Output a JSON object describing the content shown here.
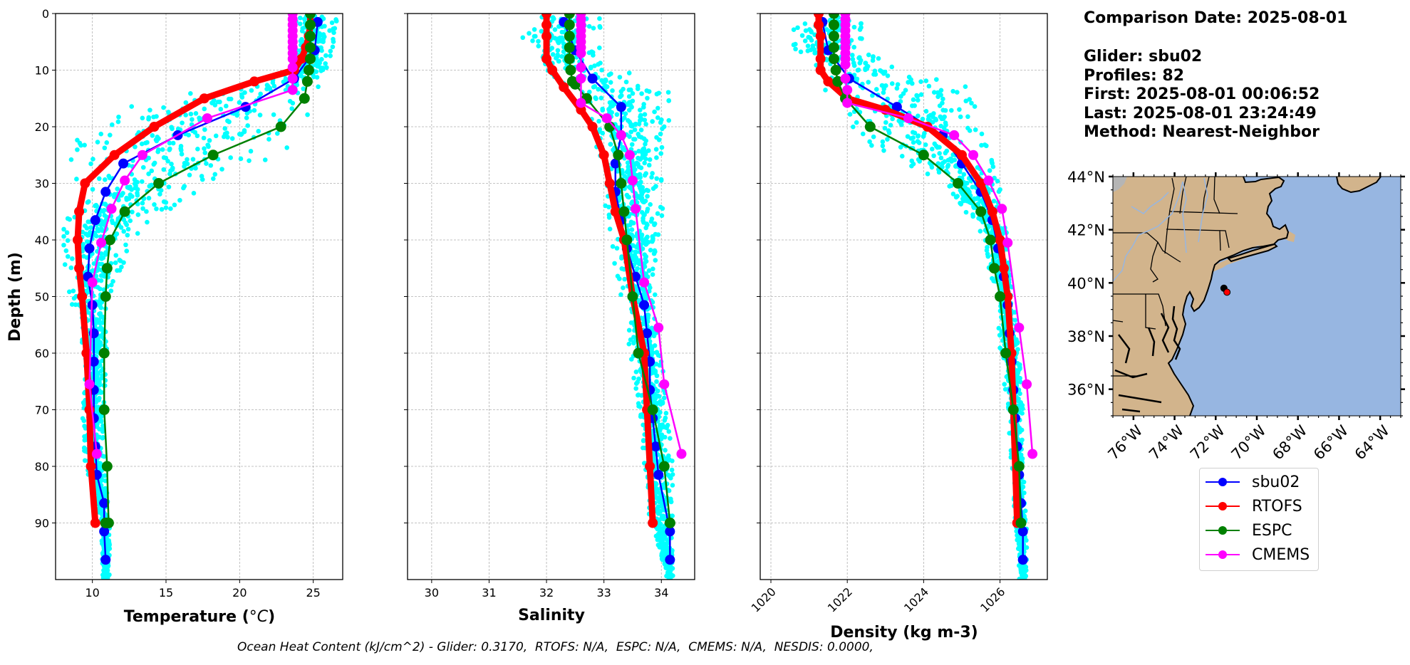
{
  "info": {
    "comparison_date": "Comparison Date: 2025-08-01",
    "glider": "Glider: sbu02",
    "profiles": "Profiles: 82",
    "first": "First: 2025-08-01 00:06:52",
    "last": "Last: 2025-08-01 23:24:49",
    "method": "Method: Nearest-Neighbor"
  },
  "footer": "Ocean Heat Content (kJ/cm^2) - Glider: 0.3170,  RTOFS: N/A,  ESPC: N/A,  CMEMS: N/A,  NESDIS: 0.0000,",
  "colors": {
    "glider_scatter": "#00ffff",
    "sbu02": "#0000ff",
    "RTOFS": "#ff0000",
    "ESPC": "#008000",
    "CMEMS": "#ff00ff",
    "land": "#d2b48c",
    "ocean": "#97b6e1",
    "rivers": "#97b6e1"
  },
  "legend": [
    {
      "label": "sbu02",
      "color": "#0000ff"
    },
    {
      "label": "RTOFS",
      "color": "#ff0000"
    },
    {
      "label": "ESPC",
      "color": "#008000"
    },
    {
      "label": "CMEMS",
      "color": "#ff00ff"
    }
  ],
  "chart_data": [
    {
      "type": "line",
      "title": "",
      "xlabel": "Temperature (°C)",
      "xlabel_main": "Temperature (",
      "xlabel_unit": "°C",
      "xlabel_close": ")",
      "ylabel": "Depth (m)",
      "xlim": [
        7.5,
        27
      ],
      "ylim": [
        100,
        0
      ],
      "xticks": [
        10,
        15,
        20,
        25
      ],
      "yticks": [
        0,
        10,
        20,
        30,
        40,
        50,
        60,
        70,
        80,
        90
      ],
      "grid": true,
      "scatter_envelope": {
        "name": "glider profiles",
        "depths": [
          1,
          5,
          10,
          12,
          15,
          18,
          20,
          22,
          25,
          28,
          30,
          35,
          40,
          45,
          50,
          55,
          60,
          70,
          80,
          90,
          100
        ],
        "min": [
          23.4,
          23.4,
          23.4,
          22.0,
          14.0,
          10.5,
          9.5,
          9.0,
          8.5,
          8.3,
          8.3,
          8.0,
          8.0,
          8.0,
          8.2,
          9.3,
          9.3,
          9.3,
          9.5,
          10.6,
          10.7
        ],
        "max": [
          26.6,
          26.5,
          26.0,
          25.5,
          25.0,
          24.8,
          24.5,
          24.2,
          22.5,
          21.0,
          18.0,
          15.0,
          12.5,
          12.2,
          11.5,
          11.0,
          11.0,
          10.8,
          10.8,
          11.2,
          11.2
        ]
      },
      "series": [
        {
          "name": "sbu02",
          "x": [
            25.3,
            25.1,
            23.7,
            20.4,
            15.8,
            12.1,
            10.9,
            10.2,
            9.8,
            9.7,
            10.0,
            10.1,
            10.1,
            10.1,
            10.1,
            10.2,
            10.3,
            10.8,
            10.8,
            10.9
          ],
          "y": [
            1.5,
            6.5,
            11.5,
            16.5,
            21.5,
            26.5,
            31.5,
            36.5,
            41.5,
            46.5,
            51.5,
            56.5,
            61.5,
            66.5,
            71.5,
            76.5,
            81.5,
            86.5,
            91.5,
            96.5
          ]
        },
        {
          "name": "RTOFS",
          "x": [
            24.8,
            24.8,
            24.7,
            24.5,
            24.2,
            23.7,
            21.0,
            17.6,
            14.2,
            11.5,
            9.5,
            9.1,
            9.0,
            9.1,
            9.3,
            9.6,
            9.8,
            9.9,
            10.2
          ],
          "y": [
            0,
            2,
            4,
            6,
            8,
            10,
            12,
            15,
            20,
            25,
            30,
            35,
            40,
            45,
            50,
            60,
            70,
            80,
            90
          ]
        },
        {
          "name": "ESPC",
          "x": [
            24.8,
            24.8,
            24.8,
            24.8,
            24.8,
            24.7,
            24.6,
            24.4,
            22.8,
            18.2,
            14.5,
            12.2,
            11.2,
            11.0,
            10.9,
            10.8,
            10.8,
            11.0,
            11.1,
            10.9,
            10.9
          ],
          "y": [
            0,
            2,
            4,
            6,
            8,
            10,
            12,
            15,
            20,
            25,
            30,
            35,
            40,
            45,
            50,
            60,
            70,
            80,
            90,
            90,
            90
          ]
        },
        {
          "name": "CMEMS",
          "x": [
            23.6,
            23.6,
            23.6,
            23.6,
            23.6,
            23.6,
            23.6,
            23.6,
            23.6,
            23.6,
            23.6,
            23.6,
            17.8,
            13.4,
            12.2,
            11.3,
            10.6,
            10.0,
            9.8,
            10.3
          ],
          "y": [
            0,
            1,
            2,
            3,
            4,
            5,
            6,
            7,
            8,
            9.5,
            11.5,
            13.5,
            18.5,
            25,
            29.5,
            34.5,
            40.5,
            47.5,
            65.5,
            77.8
          ]
        }
      ]
    },
    {
      "type": "line",
      "xlabel": "Salinity",
      "ylabel": "",
      "xlim": [
        29.58,
        34.58
      ],
      "ylim": [
        100,
        0
      ],
      "xticks": [
        30,
        31,
        32,
        33,
        34
      ],
      "yticks": [
        0,
        10,
        20,
        30,
        40,
        50,
        60,
        70,
        80,
        90
      ],
      "grid": true,
      "scatter_envelope": {
        "name": "glider profiles",
        "depths": [
          1,
          4,
          8,
          10,
          13,
          15,
          18,
          20,
          25,
          30,
          35,
          40,
          45,
          50,
          55,
          60,
          70,
          80,
          90,
          100
        ],
        "min": [
          31.9,
          31.55,
          31.9,
          32.0,
          32.3,
          32.3,
          32.6,
          32.7,
          32.9,
          33.0,
          33.0,
          33.1,
          33.2,
          33.3,
          33.4,
          33.45,
          33.6,
          33.7,
          33.8,
          34.1
        ],
        "max": [
          33.0,
          32.95,
          32.9,
          33.3,
          34.3,
          34.3,
          34.2,
          34.1,
          34.0,
          34.0,
          34.05,
          34.0,
          33.9,
          33.9,
          33.9,
          34.0,
          34.1,
          34.2,
          34.2,
          34.2
        ]
      },
      "series": [
        {
          "name": "sbu02",
          "x": [
            32.3,
            32.5,
            32.8,
            33.3,
            33.3,
            33.2,
            33.2,
            33.3,
            33.4,
            33.55,
            33.7,
            33.75,
            33.8,
            33.8,
            33.85,
            33.9,
            33.95,
            34.15,
            34.15
          ],
          "y": [
            1.5,
            6.5,
            11.5,
            16.5,
            21.5,
            26.5,
            31.5,
            36.5,
            41.5,
            46.5,
            51.5,
            56.5,
            61.5,
            66.5,
            71.5,
            76.5,
            81.5,
            91.5,
            96.5
          ]
        },
        {
          "name": "RTOFS",
          "x": [
            32.0,
            32.0,
            32.0,
            32.0,
            32.1,
            32.3,
            32.6,
            32.8,
            33.0,
            33.1,
            33.2,
            33.35,
            33.5,
            33.7,
            33.75,
            33.8,
            33.85
          ],
          "y": [
            0,
            2,
            4,
            8,
            10,
            13,
            17,
            20,
            25,
            30,
            35,
            40,
            50,
            60,
            70,
            80,
            90
          ]
        },
        {
          "name": "ESPC",
          "x": [
            32.4,
            32.4,
            32.4,
            32.4,
            32.4,
            32.42,
            32.45,
            32.5,
            32.7,
            33.1,
            33.25,
            33.3,
            33.35,
            33.4,
            33.5,
            33.6,
            33.85,
            34.05,
            34.15,
            34.15
          ],
          "y": [
            0,
            2,
            4,
            6,
            8,
            10,
            12,
            12.5,
            15,
            20,
            25,
            30,
            35,
            40,
            50,
            60,
            70,
            80,
            90,
            90
          ]
        },
        {
          "name": "CMEMS",
          "x": [
            32.6,
            32.6,
            32.6,
            32.6,
            32.6,
            32.6,
            32.6,
            32.6,
            32.6,
            32.6,
            32.6,
            33.05,
            33.3,
            33.45,
            33.5,
            33.55,
            33.7,
            33.95,
            34.05,
            34.35
          ],
          "y": [
            0,
            1,
            2,
            3,
            4,
            5,
            6,
            7,
            9.5,
            11.5,
            15.8,
            18.5,
            21.5,
            25,
            29.5,
            34.5,
            47.5,
            55.5,
            65.5,
            77.8
          ]
        }
      ]
    },
    {
      "type": "line",
      "xlabel": "Density (kg m-3)",
      "ylabel": "",
      "xlim": [
        1019.72,
        1027.24
      ],
      "ylim": [
        100,
        0
      ],
      "xticks": [
        1020,
        1022,
        1024,
        1026
      ],
      "yticks": [
        0,
        10,
        20,
        30,
        40,
        50,
        60,
        70,
        80,
        90
      ],
      "grid": true,
      "scatter_envelope": {
        "name": "glider profiles",
        "depths": [
          1,
          4,
          7,
          10,
          13,
          15,
          18,
          20,
          23,
          25,
          28,
          30,
          35,
          40,
          45,
          50,
          60,
          70,
          80,
          90,
          100
        ],
        "min": [
          1021.0,
          1020.2,
          1020.5,
          1021.2,
          1021.3,
          1021.5,
          1021.9,
          1022.0,
          1022.2,
          1022.8,
          1023.7,
          1024.5,
          1025.1,
          1025.6,
          1025.7,
          1025.9,
          1026.0,
          1026.2,
          1026.3,
          1026.4,
          1026.5
        ],
        "max": [
          1022.5,
          1022.5,
          1022.6,
          1023.5,
          1025.5,
          1025.6,
          1025.4,
          1025.6,
          1025.7,
          1025.8,
          1025.9,
          1026.0,
          1026.1,
          1026.2,
          1026.3,
          1026.35,
          1026.5,
          1026.6,
          1026.6,
          1026.7,
          1026.7
        ]
      },
      "series": [
        {
          "name": "sbu02",
          "x": [
            1021.35,
            1021.5,
            1022.05,
            1023.3,
            1024.5,
            1025.0,
            1025.5,
            1025.8,
            1025.95,
            1026.1,
            1026.2,
            1026.25,
            1026.3,
            1026.35,
            1026.4,
            1026.45,
            1026.5,
            1026.55,
            1026.6,
            1026.6
          ],
          "y": [
            1.5,
            6.5,
            11.5,
            16.5,
            21.5,
            26.5,
            31.5,
            36.5,
            41.5,
            46.5,
            51.5,
            56.5,
            61.5,
            66.5,
            71.5,
            76.5,
            81.5,
            86.5,
            91.5,
            96.5
          ]
        },
        {
          "name": "RTOFS",
          "x": [
            1021.25,
            1021.25,
            1021.3,
            1021.3,
            1021.3,
            1021.5,
            1022.0,
            1023.0,
            1024.1,
            1025.0,
            1025.5,
            1025.8,
            1026.0,
            1026.1,
            1026.2,
            1026.3,
            1026.35,
            1026.45
          ],
          "y": [
            0,
            2,
            4,
            8,
            10,
            12,
            15,
            17,
            20,
            25,
            30,
            35,
            40,
            45,
            50,
            60,
            70,
            90
          ]
        },
        {
          "name": "ESPC",
          "x": [
            1021.65,
            1021.65,
            1021.65,
            1021.65,
            1021.65,
            1021.7,
            1021.75,
            1021.95,
            1022.6,
            1024.0,
            1024.9,
            1025.5,
            1025.75,
            1025.85,
            1026.0,
            1026.15,
            1026.35,
            1026.5,
            1026.55
          ],
          "y": [
            0,
            2,
            4,
            6,
            8,
            10,
            12,
            15,
            20,
            25,
            30,
            35,
            40,
            45,
            50,
            60,
            70,
            80,
            90
          ]
        },
        {
          "name": "CMEMS",
          "x": [
            1021.95,
            1021.95,
            1021.95,
            1021.95,
            1021.95,
            1021.95,
            1021.95,
            1021.95,
            1021.95,
            1021.95,
            1021.95,
            1022.0,
            1022.0,
            1023.6,
            1024.8,
            1025.3,
            1025.7,
            1026.05,
            1026.2,
            1026.5,
            1026.7,
            1026.85
          ],
          "y": [
            0,
            1,
            2,
            3,
            4,
            5,
            6,
            7,
            8,
            9,
            11.5,
            13.5,
            15.8,
            18.5,
            21.5,
            25,
            29.5,
            34.5,
            40.5,
            55.5,
            65.5,
            77.8
          ]
        }
      ]
    },
    {
      "type": "map",
      "title": "Glider location",
      "lat_range": [
        35,
        44
      ],
      "lon_range": [
        -77,
        -63
      ],
      "lat_ticks": [
        44,
        42,
        40,
        38,
        36
      ],
      "lat_tick_labels": [
        "44°N",
        "42°N",
        "40°N",
        "38°N",
        "36°N"
      ],
      "lon_ticks": [
        -76,
        -74,
        -72,
        -70,
        -68,
        -66,
        -64
      ],
      "lon_tick_labels": [
        "76°W",
        "74°W",
        "72°W",
        "70°W",
        "68°W",
        "66°W",
        "64°W"
      ],
      "glider_track": {
        "lat": [
          39.8,
          39.65
        ],
        "lon": [
          -71.6,
          -71.45
        ]
      },
      "marker_position": {
        "lat": 39.65,
        "lon": -71.45
      }
    }
  ]
}
